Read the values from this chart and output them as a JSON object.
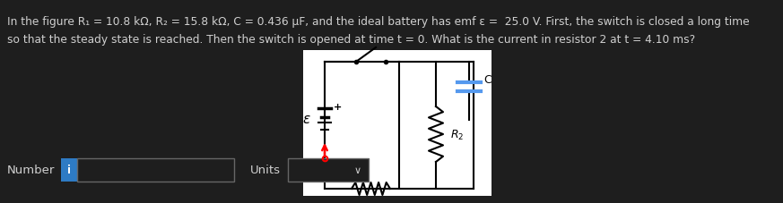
{
  "background_color": "#1e1e1e",
  "text_color": "#d0d0d0",
  "title_line1": "In the figure R₁ = 10.8 kΩ, R₂ = 15.8 kΩ, C = 0.436 μF, and the ideal battery has emf ε =  25.0 V. First, the switch is closed a long time",
  "title_line2": "so that the steady state is reached. Then the switch is opened at time t = 0. What is the current in resistor 2 at t = 4.10 ms?",
  "number_label": "Number",
  "units_label": "Units",
  "number_box_border": "#666666",
  "units_box_border": "#666666",
  "info_button_color": "#2e7bc4",
  "info_button_text": "i",
  "circuit_bg": "#ffffff",
  "font_size_main": 8.8,
  "font_size_label": 9.5,
  "capacitor_color": "#5599ee"
}
